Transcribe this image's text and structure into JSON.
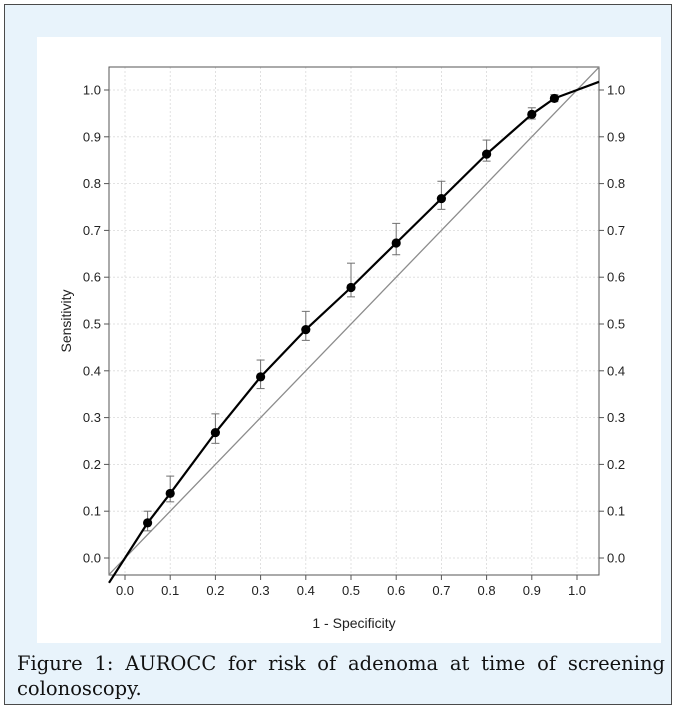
{
  "caption": "Figure 1: AUROCC for risk of adenoma at time of screening colonoscopy.",
  "chart_data": {
    "type": "line",
    "title": "",
    "xlabel": "1 - Specificity",
    "ylabel": "Sensitivity",
    "xlim": [
      0.0,
      1.0
    ],
    "ylim": [
      0.0,
      1.0
    ],
    "x_ticks": [
      "0.0",
      "0.1",
      "0.2",
      "0.3",
      "0.4",
      "0.5",
      "0.6",
      "0.7",
      "0.8",
      "0.9",
      "1.0"
    ],
    "y_ticks": [
      "0.0",
      "0.1",
      "0.2",
      "0.3",
      "0.4",
      "0.5",
      "0.6",
      "0.7",
      "0.8",
      "0.9",
      "1.0"
    ],
    "right_axis_ticks": true,
    "grid": true,
    "reference_line": {
      "from": [
        0.0,
        0.0
      ],
      "to": [
        1.0,
        1.0
      ]
    },
    "series": [
      {
        "points": [
          {
            "x": 0.0,
            "y": 0.0,
            "lo": null,
            "hi": null
          },
          {
            "x": 0.05,
            "y": 0.075,
            "lo": 0.058,
            "hi": 0.1
          },
          {
            "x": 0.1,
            "y": 0.138,
            "lo": 0.12,
            "hi": 0.175
          },
          {
            "x": 0.2,
            "y": 0.268,
            "lo": 0.245,
            "hi": 0.308
          },
          {
            "x": 0.3,
            "y": 0.387,
            "lo": 0.362,
            "hi": 0.423
          },
          {
            "x": 0.4,
            "y": 0.488,
            "lo": 0.465,
            "hi": 0.527
          },
          {
            "x": 0.5,
            "y": 0.578,
            "lo": 0.558,
            "hi": 0.63
          },
          {
            "x": 0.6,
            "y": 0.673,
            "lo": 0.648,
            "hi": 0.715
          },
          {
            "x": 0.7,
            "y": 0.768,
            "lo": 0.745,
            "hi": 0.805
          },
          {
            "x": 0.8,
            "y": 0.863,
            "lo": 0.848,
            "hi": 0.893
          },
          {
            "x": 0.9,
            "y": 0.948,
            "lo": 0.938,
            "hi": 0.962
          },
          {
            "x": 0.95,
            "y": 0.982,
            "lo": 0.975,
            "hi": 0.99
          },
          {
            "x": 1.0,
            "y": 1.0,
            "lo": null,
            "hi": null
          }
        ]
      }
    ],
    "colors": {
      "line": "#000000",
      "reference": "#8c8c8c",
      "error_bar": "#707070",
      "grid": "#d9d9d9"
    }
  }
}
